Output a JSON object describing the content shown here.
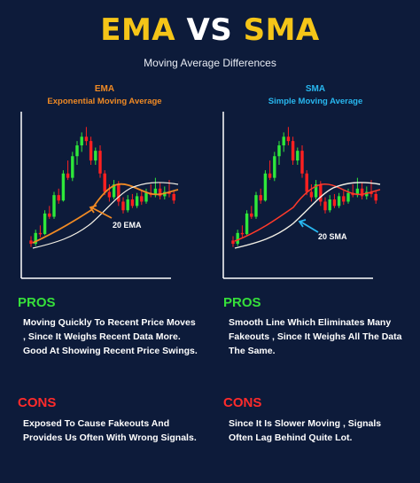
{
  "title": {
    "part1": "EMA",
    "part2": "VS",
    "part3": "SMA"
  },
  "subtitle": "Moving Average Differences",
  "ema": {
    "heading": "EMA",
    "subheading": "Exponential Moving Average",
    "annotation": "20 EMA",
    "pros_label": "PROS",
    "pros": [
      "Moving Quickly To Recent Price Moves , Since It Weighs Recent Data More.",
      "Good At Showing Recent Price Swings."
    ],
    "cons_label": "CONS",
    "cons": [
      "Exposed To Cause Fakeouts And Provides Us Often With Wrong Signals."
    ]
  },
  "sma": {
    "heading": "SMA",
    "subheading": "Simple Moving Average",
    "annotation": "20 SMA",
    "pros_label": "PROS",
    "pros": [
      "Smooth Line Which Eliminates Many Fakeouts , Since It Weighs All The Data The Same."
    ],
    "cons_label": "CONS",
    "cons": [
      "Since It Is Slower Moving , Signals Often Lag Behind Quite Lot."
    ]
  },
  "colors": {
    "background": "#0d1b3a",
    "title_accent": "#f5c518",
    "ema_accent": "#f08a24",
    "sma_accent": "#28b8f0",
    "pros": "#36e03a",
    "cons": "#ff2b2b",
    "candle_up": "#2ee83a",
    "candle_down": "#ff2020"
  },
  "candles": [
    {
      "o": 30,
      "h": 34,
      "l": 24,
      "c": 27
    },
    {
      "o": 27,
      "h": 40,
      "l": 25,
      "c": 37
    },
    {
      "o": 37,
      "h": 44,
      "l": 33,
      "c": 36
    },
    {
      "o": 36,
      "h": 58,
      "l": 35,
      "c": 55
    },
    {
      "o": 55,
      "h": 62,
      "l": 50,
      "c": 52
    },
    {
      "o": 52,
      "h": 75,
      "l": 50,
      "c": 72
    },
    {
      "o": 72,
      "h": 78,
      "l": 64,
      "c": 67
    },
    {
      "o": 67,
      "h": 95,
      "l": 66,
      "c": 92
    },
    {
      "o": 92,
      "h": 104,
      "l": 86,
      "c": 88
    },
    {
      "o": 88,
      "h": 112,
      "l": 85,
      "c": 108
    },
    {
      "o": 108,
      "h": 122,
      "l": 100,
      "c": 118
    },
    {
      "o": 118,
      "h": 130,
      "l": 112,
      "c": 126
    },
    {
      "o": 126,
      "h": 135,
      "l": 118,
      "c": 122
    },
    {
      "o": 122,
      "h": 126,
      "l": 100,
      "c": 104
    },
    {
      "o": 104,
      "h": 116,
      "l": 100,
      "c": 113
    },
    {
      "o": 113,
      "h": 118,
      "l": 88,
      "c": 92
    },
    {
      "o": 92,
      "h": 95,
      "l": 72,
      "c": 75
    },
    {
      "o": 75,
      "h": 82,
      "l": 66,
      "c": 70
    },
    {
      "o": 70,
      "h": 86,
      "l": 68,
      "c": 82
    },
    {
      "o": 82,
      "h": 85,
      "l": 62,
      "c": 66
    },
    {
      "o": 66,
      "h": 70,
      "l": 55,
      "c": 58
    },
    {
      "o": 58,
      "h": 72,
      "l": 56,
      "c": 68
    },
    {
      "o": 68,
      "h": 73,
      "l": 60,
      "c": 62
    },
    {
      "o": 62,
      "h": 74,
      "l": 60,
      "c": 71
    },
    {
      "o": 71,
      "h": 76,
      "l": 63,
      "c": 66
    },
    {
      "o": 66,
      "h": 78,
      "l": 64,
      "c": 74
    },
    {
      "o": 74,
      "h": 82,
      "l": 70,
      "c": 72
    },
    {
      "o": 72,
      "h": 88,
      "l": 70,
      "c": 78
    },
    {
      "o": 78,
      "h": 84,
      "l": 68,
      "c": 71
    },
    {
      "o": 71,
      "h": 80,
      "l": 68,
      "c": 75
    },
    {
      "o": 75,
      "h": 86,
      "l": 70,
      "c": 73
    },
    {
      "o": 73,
      "h": 76,
      "l": 64,
      "c": 67
    }
  ]
}
